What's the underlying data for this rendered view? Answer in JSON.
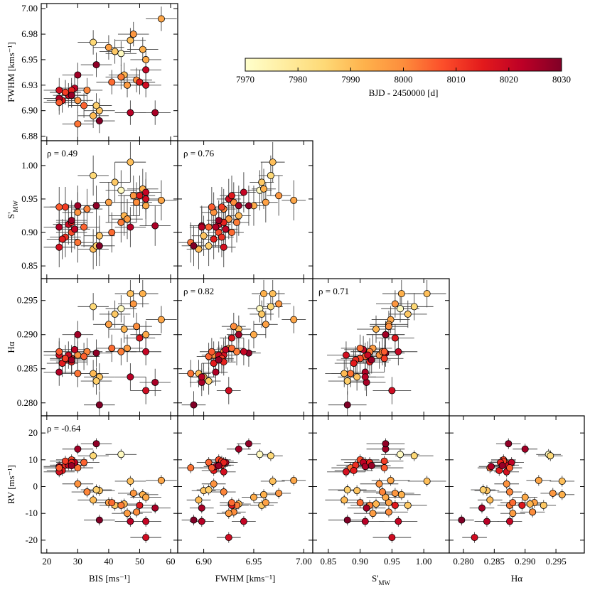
{
  "chart_data": {
    "type": "corner",
    "variables": [
      {
        "label": "BIS [ms⁻¹]",
        "error": 5,
        "values": [
          44,
          35,
          47,
          51,
          57,
          42,
          40,
          48,
          45,
          49,
          52,
          46,
          44,
          37,
          35,
          36,
          30,
          33,
          30,
          32,
          28,
          26,
          25,
          24,
          27,
          29,
          24,
          30,
          36,
          37,
          55,
          47,
          52,
          52,
          26,
          24,
          28,
          50,
          28,
          41
        ],
        "xlim": [
          18.2,
          62.3
        ],
        "xticks": [
          20,
          30,
          40,
          50,
          60
        ]
      },
      {
        "label": "FWHM [kms⁻¹]",
        "error": 0.012,
        "values": [
          6.956,
          6.967,
          6.969,
          6.96,
          6.99,
          6.958,
          6.962,
          6.975,
          6.935,
          6.93,
          6.95,
          6.925,
          6.933,
          6.9,
          6.895,
          6.905,
          6.91,
          6.92,
          6.887,
          6.905,
          6.915,
          6.918,
          6.91,
          6.92,
          6.915,
          6.922,
          6.912,
          6.935,
          6.945,
          6.89,
          6.898,
          6.898,
          6.94,
          6.925,
          6.918,
          6.908,
          6.92,
          6.928,
          6.915,
          6.928
        ],
        "xlim": [
          6.874,
          7.009
        ],
        "xticks": [
          {
            "value": 6.9,
            "label": "6.90"
          },
          {
            "value": 6.95,
            "label": "6.95"
          },
          {
            "value": 7.0,
            "label": "7.00"
          }
        ],
        "ylim": [
          6.8705,
          7.005
        ],
        "yticks": [
          {
            "value": 6.875,
            "label": "6.88"
          },
          {
            "value": 6.9,
            "label": "6.90"
          },
          {
            "value": 6.925,
            "label": "6.93"
          },
          {
            "value": 6.95,
            "label": "6.95"
          },
          {
            "value": 6.975,
            "label": "6.98"
          },
          {
            "value": 7.0,
            "label": "7.00"
          }
        ]
      },
      {
        "label": "S'",
        "label_sub": "MW",
        "error": 0.03,
        "values": [
          0.963,
          0.985,
          1.005,
          0.965,
          0.948,
          0.975,
          0.945,
          0.955,
          0.925,
          0.945,
          0.94,
          0.92,
          0.915,
          0.895,
          0.875,
          0.88,
          0.93,
          0.935,
          0.885,
          0.908,
          0.9,
          0.893,
          0.89,
          0.878,
          0.912,
          0.905,
          0.908,
          0.94,
          0.94,
          0.88,
          0.91,
          0.908,
          0.96,
          0.95,
          0.938,
          0.938,
          0.915,
          0.955,
          0.918,
          0.9
        ],
        "xlim": [
          0.8256,
          1.04
        ],
        "xticks": [
          {
            "value": 0.85,
            "label": "0.85"
          },
          {
            "value": 0.9,
            "label": "0.90"
          },
          {
            "value": 0.95,
            "label": "0.95"
          },
          {
            "value": 1.0,
            "label": "1.00"
          }
        ],
        "ylim": [
          0.831,
          1.037
        ],
        "yticks": [
          {
            "value": 0.85,
            "label": "0.85"
          },
          {
            "value": 0.9,
            "label": "0.90"
          },
          {
            "value": 0.95,
            "label": "0.95"
          },
          {
            "value": 1.0,
            "label": "1.00"
          }
        ]
      },
      {
        "label": "Hα",
        "error": 0.002,
        "values": [
          0.2938,
          0.2941,
          0.296,
          0.296,
          0.2922,
          0.293,
          0.2915,
          0.2945,
          0.2908,
          0.2912,
          0.29,
          0.288,
          0.2875,
          0.2838,
          0.2843,
          0.2832,
          0.287,
          0.2875,
          0.2843,
          0.2868,
          0.2865,
          0.2863,
          0.2858,
          0.287,
          0.287,
          0.2878,
          0.2845,
          0.29,
          0.2873,
          0.2797,
          0.283,
          0.2838,
          0.2875,
          0.2818,
          0.2865,
          0.2875,
          0.286,
          0.2895,
          0.2863,
          0.288
        ],
        "xlim": [
          0.2777,
          0.2996
        ],
        "xticks": [
          {
            "value": 0.28,
            "label": "0.280"
          },
          {
            "value": 0.285,
            "label": "0.285"
          },
          {
            "value": 0.29,
            "label": "0.290"
          },
          {
            "value": 0.295,
            "label": "0.295"
          }
        ],
        "ylim": [
          0.2781,
          0.2982
        ],
        "yticks": [
          {
            "value": 0.28,
            "label": "0.280"
          },
          {
            "value": 0.285,
            "label": "0.285"
          },
          {
            "value": 0.29,
            "label": "0.290"
          },
          {
            "value": 0.295,
            "label": "0.295"
          }
        ]
      },
      {
        "label": "RV [ms⁻¹]",
        "error": 2,
        "values": [
          12,
          11.5,
          2,
          -3,
          2.3,
          -7,
          -6,
          -2.5,
          -6.5,
          -9.5,
          -4,
          -10,
          -7,
          -1.5,
          -5,
          -1.2,
          1,
          -2,
          7,
          9,
          10,
          8,
          6,
          5.5,
          8,
          9,
          7.5,
          14,
          16,
          -12.5,
          -8,
          -13,
          -13,
          -19,
          9.5,
          7,
          9,
          -7,
          7.8,
          -6
        ],
        "ylim": [
          -24.8,
          26.4
        ],
        "yticks": [
          -20,
          -10,
          0,
          10,
          20
        ]
      }
    ],
    "rho": [
      [
        null
      ],
      [
        "ρ = 0.49",
        "ρ = 0.76"
      ],
      [
        null,
        "ρ = 0.82",
        "ρ = 0.71"
      ],
      [
        "ρ = -0.64",
        null,
        null,
        null
      ]
    ],
    "color_by": {
      "label": "BJD - 2450000 [d]",
      "values": [
        7972,
        7985,
        7990,
        7993,
        7995,
        7988,
        7996,
        7998,
        7992,
        8000,
        7994,
        7997,
        8002,
        7989,
        7991,
        7987,
        7999,
        8001,
        8003,
        8005,
        8008,
        8012,
        8015,
        8018,
        8020,
        8022,
        8024,
        8026,
        8028,
        8030,
        8025,
        8023,
        8021,
        8019,
        8010,
        8006,
        8014,
        8016,
        8027,
        8004
      ],
      "lim": [
        7970,
        8030
      ],
      "ticks": [
        7970,
        7980,
        7990,
        8000,
        8010,
        8020,
        8030
      ],
      "colormap": [
        "#ffffcc",
        "#ffeda0",
        "#fed976",
        "#feb24c",
        "#fd8d3c",
        "#fc4e2a",
        "#e31a1c",
        "#bd0026",
        "#800026"
      ]
    }
  }
}
